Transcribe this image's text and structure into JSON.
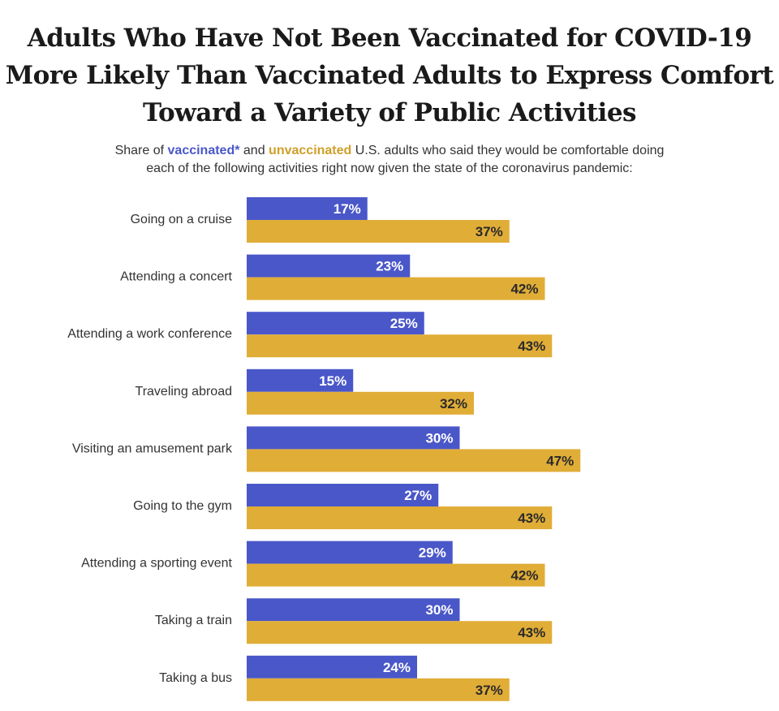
{
  "title_lines": [
    "Adults Who Have Not Been Vaccinated for COVID-19",
    "More Likely Than Vaccinated Adults to Express Comfort",
    "Toward a Variety of Public Activities"
  ],
  "subtitle": {
    "line1_pre": "Share of ",
    "line1_vac": "vaccinated*",
    "line1_mid": " and ",
    "line1_unvac": "unvaccinated",
    "line1_post": " U.S. adults who said they would be comfortable doing",
    "line2": "each of the following activities right now given the state of the coronavirus pandemic:"
  },
  "colors": {
    "vaccinated": "#4a57c9",
    "unvaccinated": "#e0ad37"
  },
  "chart_data": {
    "type": "bar",
    "orientation": "horizontal",
    "categories": [
      "Going on a cruise",
      "Attending a concert",
      "Attending a work conference",
      "Traveling abroad",
      "Visiting an amusement park",
      "Going to the gym",
      "Attending a sporting event",
      "Taking a train",
      "Taking a bus"
    ],
    "series": [
      {
        "name": "vaccinated*",
        "values": [
          17,
          23,
          25,
          15,
          30,
          27,
          29,
          30,
          24
        ]
      },
      {
        "name": "unvaccinated",
        "values": [
          37,
          42,
          43,
          32,
          47,
          43,
          42,
          43,
          37
        ]
      }
    ],
    "value_suffix": "%",
    "title": "Adults Who Have Not Been Vaccinated for COVID-19 More Likely Than Vaccinated Adults to Express Comfort Toward a Variety of Public Activities",
    "xlabel": "",
    "ylabel": "",
    "grid": false,
    "legend": "in subtitle"
  }
}
